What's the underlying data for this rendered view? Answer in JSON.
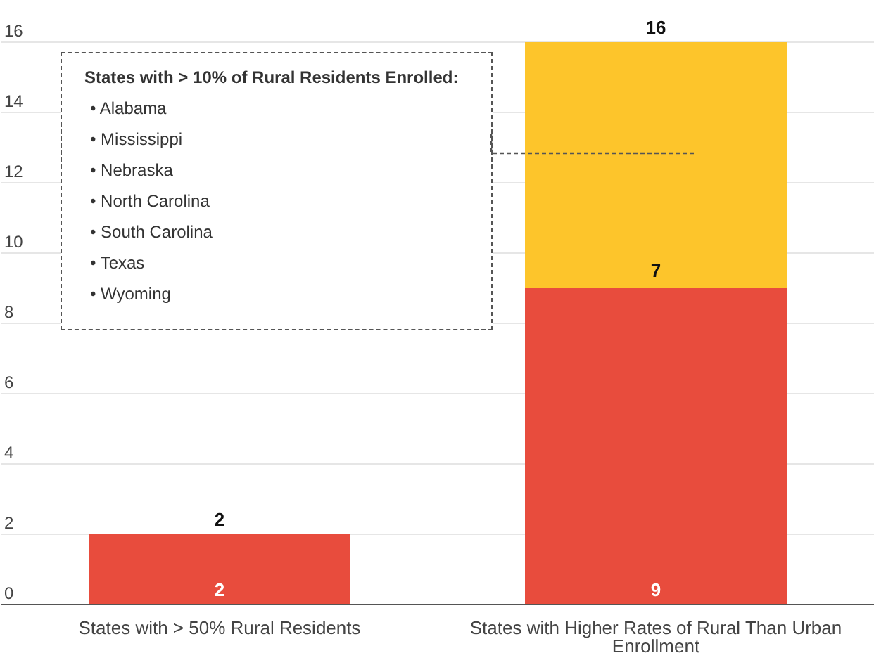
{
  "chart_data": {
    "type": "bar",
    "stacked": true,
    "categories": [
      "States with > 50% Rural Residents",
      "States with Higher Rates of Rural Than Urban Enrollment"
    ],
    "series": [
      {
        "color": "#e84c3d",
        "values": [
          2,
          9
        ]
      },
      {
        "color": "#fdc52b",
        "values": [
          null,
          7
        ]
      }
    ],
    "totals": [
      "2",
      "16"
    ],
    "data_labels": true,
    "ylim": [
      0,
      16
    ],
    "yticks": [
      0,
      2,
      4,
      6,
      8,
      10,
      12,
      14,
      16
    ],
    "grid": "y",
    "annotations": [
      "States with > 10% of Rural Residents Enrolled:",
      "• Alabama",
      "• Mississippi",
      "• Nebraska",
      "• North Carolina",
      "• South Carolina",
      "• Texas",
      "• Wyoming"
    ]
  }
}
